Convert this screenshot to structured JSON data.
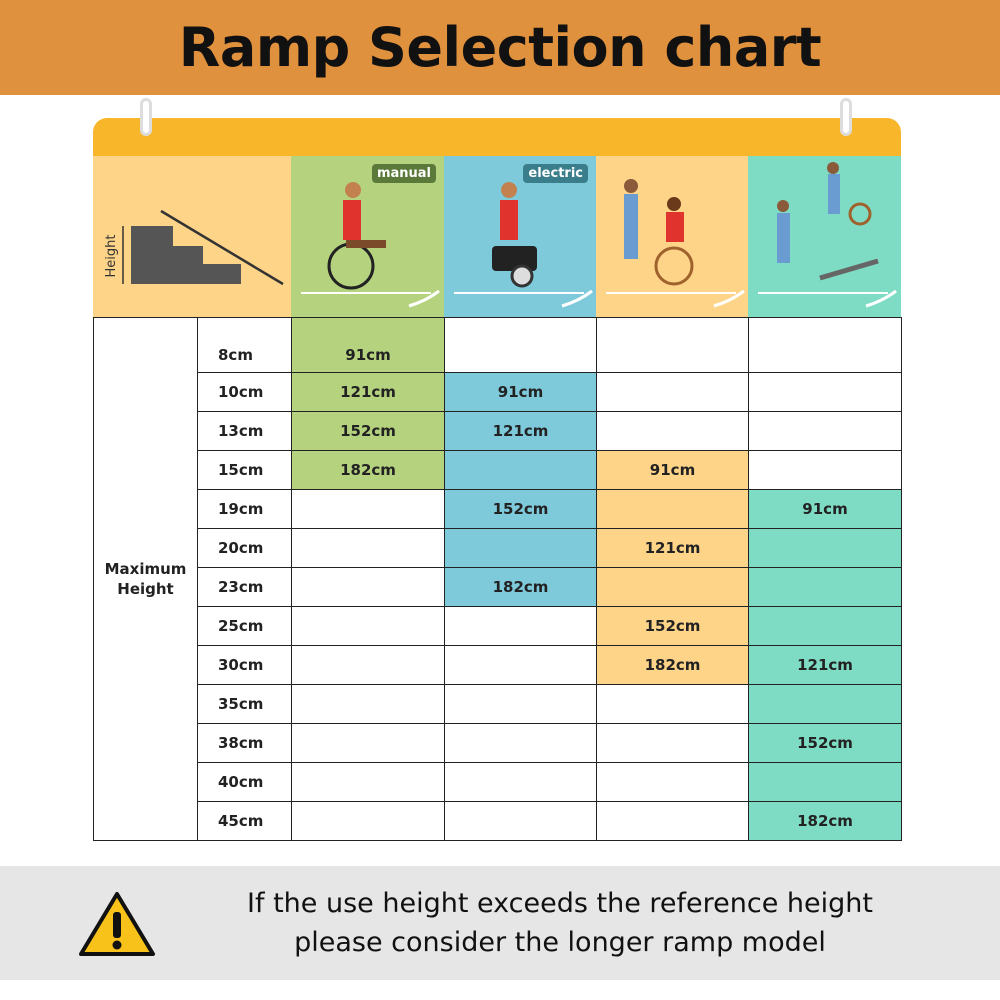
{
  "title": "Ramp Selection chart",
  "header": {
    "height_label": "Height",
    "tags": [
      "manual",
      "electric"
    ],
    "icons": [
      "stairs-height-diagram",
      "manual-wheelchair-icon",
      "electric-wheelchair-icon",
      "assisted-wheelchair-icon",
      "trolley-and-wheelchair-icon"
    ]
  },
  "colors": {
    "banner": "#e0913d",
    "topbar": "#f8b62b",
    "manual": "#b5d27e",
    "electric": "#7ecadb",
    "assisted": "#fdd488",
    "trolley": "#7fdcc4",
    "footer": "#e6e6e6"
  },
  "chart_data": {
    "type": "table",
    "title": "Ramp Selection chart",
    "row_header": "Maximum Height",
    "rows": [
      "8cm",
      "10cm",
      "13cm",
      "15cm",
      "19cm",
      "20cm",
      "23cm",
      "25cm",
      "30cm",
      "35cm",
      "38cm",
      "40cm",
      "45cm"
    ],
    "columns": [
      {
        "tag": "manual",
        "color": "#b5d27e",
        "span": [
          0,
          3
        ],
        "cells": [
          "91cm",
          "121cm",
          "152cm",
          "182cm",
          "",
          "",
          "",
          "",
          "",
          "",
          "",
          "",
          ""
        ]
      },
      {
        "tag": "electric",
        "color": "#7ecadb",
        "span": [
          1,
          6
        ],
        "cells": [
          "",
          "91cm",
          "121cm",
          "",
          "152cm",
          "",
          "182cm",
          "",
          "",
          "",
          "",
          "",
          ""
        ]
      },
      {
        "tag": "",
        "color": "#fdd488",
        "span": [
          3,
          8
        ],
        "cells": [
          "",
          "",
          "",
          "91cm",
          "",
          "121cm",
          "",
          "152cm",
          "182cm",
          "",
          "",
          "",
          ""
        ]
      },
      {
        "tag": "",
        "color": "#7fdcc4",
        "span": [
          4,
          12
        ],
        "cells": [
          "",
          "",
          "",
          "",
          "91cm",
          "",
          "",
          "",
          "121cm",
          "",
          "152cm",
          "",
          "182cm"
        ]
      }
    ]
  },
  "footer": {
    "line1": "If the use height exceeds the reference height",
    "line2": "please consider the longer ramp model",
    "icon": "warning-icon"
  }
}
